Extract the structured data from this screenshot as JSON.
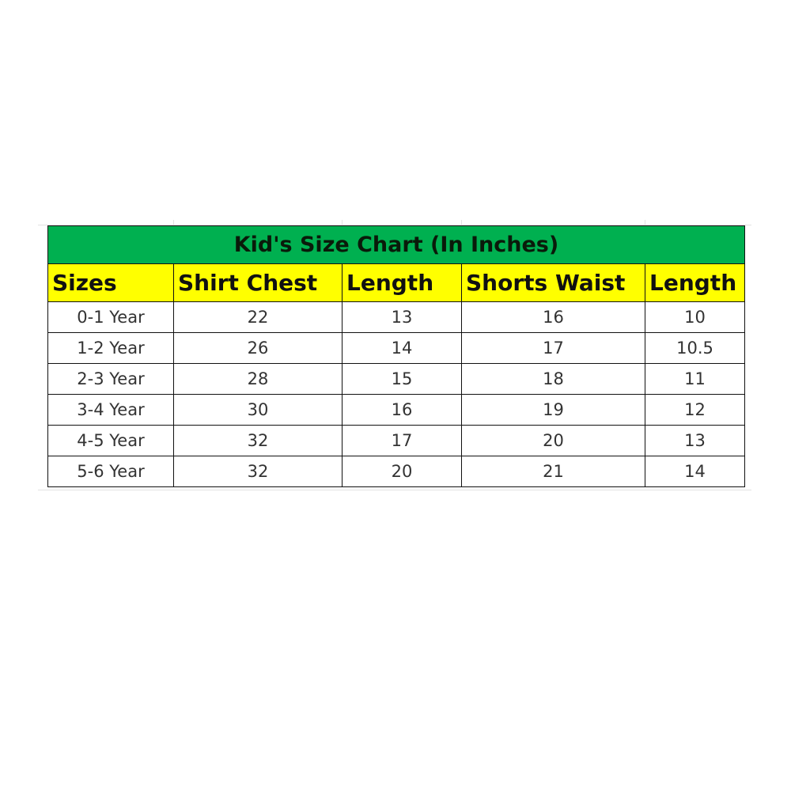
{
  "title": "Kid's Size Chart (In Inches)",
  "colors": {
    "title_bg": "#00b050",
    "header_bg": "#ffff00"
  },
  "headers": [
    "Sizes",
    "Shirt Chest",
    "Length",
    "Shorts Waist",
    "Length"
  ],
  "rows": [
    [
      "0-1 Year",
      "22",
      "13",
      "16",
      "10"
    ],
    [
      "1-2 Year",
      "26",
      "14",
      "17",
      "10.5"
    ],
    [
      "2-3 Year",
      "28",
      "15",
      "18",
      "11"
    ],
    [
      "3-4 Year",
      "30",
      "16",
      "19",
      "12"
    ],
    [
      "4-5 Year",
      "32",
      "17",
      "20",
      "13"
    ],
    [
      "5-6 Year",
      "32",
      "20",
      "21",
      "14"
    ]
  ]
}
